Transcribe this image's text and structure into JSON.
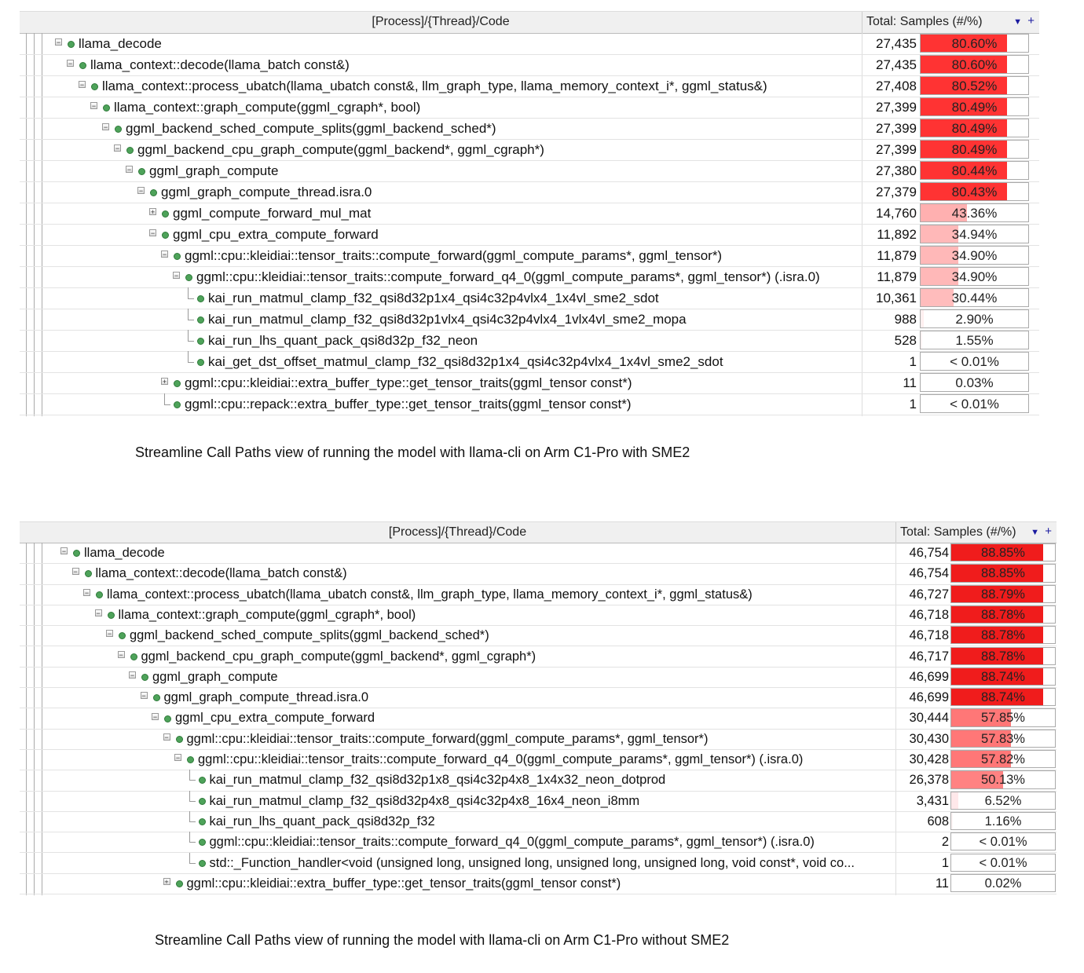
{
  "tables": [
    {
      "header": {
        "code": "[Process]/{Thread}/Code",
        "samples": "Total: Samples (#/%)",
        "sort_icon": "sort-desc-icon",
        "add_icon": "plus-icon"
      },
      "caption": "Streamline Call Paths view of running the model with llama-cli on Arm C1-Pro with SME2",
      "rows": [
        {
          "depth": 0,
          "exp": "minus",
          "name": "llama_decode",
          "count": "27,435",
          "pct": "80.60%",
          "fill": 80.6,
          "color": "#ff3333"
        },
        {
          "depth": 1,
          "exp": "minus",
          "name": "llama_context::decode(llama_batch const&)",
          "count": "27,435",
          "pct": "80.60%",
          "fill": 80.6,
          "color": "#ff3333"
        },
        {
          "depth": 2,
          "exp": "minus",
          "name": "llama_context::process_ubatch(llama_ubatch const&, llm_graph_type, llama_memory_context_i*, ggml_status&)",
          "count": "27,408",
          "pct": "80.52%",
          "fill": 80.52,
          "color": "#ff3333"
        },
        {
          "depth": 3,
          "exp": "minus",
          "name": "llama_context::graph_compute(ggml_cgraph*, bool)",
          "count": "27,399",
          "pct": "80.49%",
          "fill": 80.49,
          "color": "#ff3333"
        },
        {
          "depth": 4,
          "exp": "minus",
          "name": "ggml_backend_sched_compute_splits(ggml_backend_sched*)",
          "count": "27,399",
          "pct": "80.49%",
          "fill": 80.49,
          "color": "#ff3333"
        },
        {
          "depth": 5,
          "exp": "minus",
          "name": "ggml_backend_cpu_graph_compute(ggml_backend*, ggml_cgraph*)",
          "count": "27,399",
          "pct": "80.49%",
          "fill": 80.49,
          "color": "#ff3333"
        },
        {
          "depth": 6,
          "exp": "minus",
          "name": "ggml_graph_compute",
          "count": "27,380",
          "pct": "80.44%",
          "fill": 80.44,
          "color": "#ff3333"
        },
        {
          "depth": 7,
          "exp": "minus",
          "name": "ggml_graph_compute_thread.isra.0",
          "count": "27,379",
          "pct": "80.43%",
          "fill": 80.43,
          "color": "#ff3333"
        },
        {
          "depth": 8,
          "exp": "plus",
          "name": "ggml_compute_forward_mul_mat",
          "count": "14,760",
          "pct": "43.36%",
          "fill": 43.36,
          "color": "#ffb0b0"
        },
        {
          "depth": 8,
          "exp": "minus",
          "name": "ggml_cpu_extra_compute_forward",
          "count": "11,892",
          "pct": "34.94%",
          "fill": 34.94,
          "color": "#ffb8b8"
        },
        {
          "depth": 9,
          "exp": "minus",
          "name": "ggml::cpu::kleidiai::tensor_traits::compute_forward(ggml_compute_params*, ggml_tensor*)",
          "count": "11,879",
          "pct": "34.90%",
          "fill": 34.9,
          "color": "#ffb8b8"
        },
        {
          "depth": 10,
          "exp": "minus",
          "name": "ggml::cpu::kleidiai::tensor_traits::compute_forward_q4_0(ggml_compute_params*, ggml_tensor*) (.isra.0)",
          "count": "11,879",
          "pct": "34.90%",
          "fill": 34.9,
          "color": "#ffb8b8"
        },
        {
          "depth": 11,
          "exp": "leaf",
          "name": "kai_run_matmul_clamp_f32_qsi8d32p1x4_qsi4c32p4vlx4_1x4vl_sme2_sdot",
          "count": "10,361",
          "pct": "30.44%",
          "fill": 30.44,
          "color": "#ffbcbc"
        },
        {
          "depth": 11,
          "exp": "leaf",
          "name": "kai_run_matmul_clamp_f32_qsi8d32p1vlx4_qsi4c32p4vlx4_1vlx4vl_sme2_mopa",
          "count": "988",
          "pct": "2.90%",
          "fill": 2.9,
          "color": "#fff0f0"
        },
        {
          "depth": 11,
          "exp": "leaf",
          "name": "kai_run_lhs_quant_pack_qsi8d32p_f32_neon",
          "count": "528",
          "pct": "1.55%",
          "fill": 1.55,
          "color": "#fff4f4"
        },
        {
          "depth": 11,
          "exp": "leaf",
          "name": "kai_get_dst_offset_matmul_clamp_f32_qsi8d32p1x4_qsi4c32p4vlx4_1x4vl_sme2_sdot",
          "count": "1",
          "pct": "< 0.01%",
          "fill": 0,
          "color": "#ffffff"
        },
        {
          "depth": 9,
          "exp": "plus",
          "name": "ggml::cpu::kleidiai::extra_buffer_type::get_tensor_traits(ggml_tensor const*)",
          "count": "11",
          "pct": "0.03%",
          "fill": 0.03,
          "color": "#ffffff"
        },
        {
          "depth": 9,
          "exp": "leaf",
          "name": "ggml::cpu::repack::extra_buffer_type::get_tensor_traits(ggml_tensor const*)",
          "count": "1",
          "pct": "< 0.01%",
          "fill": 0,
          "color": "#ffffff"
        }
      ]
    },
    {
      "header": {
        "code": "[Process]/{Thread}/Code",
        "samples": "Total: Samples (#/%)",
        "sort_icon": "sort-desc-icon",
        "add_icon": "plus-icon"
      },
      "caption": "Streamline Call Paths view of running the model with llama-cli on Arm C1-Pro without SME2",
      "rows": [
        {
          "depth": 0,
          "exp": "minus",
          "name": "llama_decode",
          "count": "46,754",
          "pct": "88.85%",
          "fill": 88.85,
          "color": "#f01c1c"
        },
        {
          "depth": 1,
          "exp": "minus",
          "name": "llama_context::decode(llama_batch const&)",
          "count": "46,754",
          "pct": "88.85%",
          "fill": 88.85,
          "color": "#f01c1c"
        },
        {
          "depth": 2,
          "exp": "minus",
          "name": "llama_context::process_ubatch(llama_ubatch const&, llm_graph_type, llama_memory_context_i*, ggml_status&)",
          "count": "46,727",
          "pct": "88.79%",
          "fill": 88.79,
          "color": "#f01c1c"
        },
        {
          "depth": 3,
          "exp": "minus",
          "name": "llama_context::graph_compute(ggml_cgraph*, bool)",
          "count": "46,718",
          "pct": "88.78%",
          "fill": 88.78,
          "color": "#f01c1c"
        },
        {
          "depth": 4,
          "exp": "minus",
          "name": "ggml_backend_sched_compute_splits(ggml_backend_sched*)",
          "count": "46,718",
          "pct": "88.78%",
          "fill": 88.78,
          "color": "#f01c1c"
        },
        {
          "depth": 5,
          "exp": "minus",
          "name": "ggml_backend_cpu_graph_compute(ggml_backend*, ggml_cgraph*)",
          "count": "46,717",
          "pct": "88.78%",
          "fill": 88.78,
          "color": "#f01c1c"
        },
        {
          "depth": 6,
          "exp": "minus",
          "name": "ggml_graph_compute",
          "count": "46,699",
          "pct": "88.74%",
          "fill": 88.74,
          "color": "#f01c1c"
        },
        {
          "depth": 7,
          "exp": "minus",
          "name": "ggml_graph_compute_thread.isra.0",
          "count": "46,699",
          "pct": "88.74%",
          "fill": 88.74,
          "color": "#f01c1c"
        },
        {
          "depth": 8,
          "exp": "minus",
          "name": "ggml_cpu_extra_compute_forward",
          "count": "30,444",
          "pct": "57.85%",
          "fill": 57.85,
          "color": "#ff7777"
        },
        {
          "depth": 9,
          "exp": "minus",
          "name": "ggml::cpu::kleidiai::tensor_traits::compute_forward(ggml_compute_params*, ggml_tensor*)",
          "count": "30,430",
          "pct": "57.83%",
          "fill": 57.83,
          "color": "#ff7777"
        },
        {
          "depth": 10,
          "exp": "minus",
          "name": "ggml::cpu::kleidiai::tensor_traits::compute_forward_q4_0(ggml_compute_params*, ggml_tensor*) (.isra.0)",
          "count": "30,428",
          "pct": "57.82%",
          "fill": 57.82,
          "color": "#ff7777"
        },
        {
          "depth": 11,
          "exp": "leaf",
          "name": "kai_run_matmul_clamp_f32_qsi8d32p1x8_qsi4c32p4x8_1x4x32_neon_dotprod",
          "count": "26,378",
          "pct": "50.13%",
          "fill": 50.13,
          "color": "#ff8282"
        },
        {
          "depth": 11,
          "exp": "leaf",
          "name": "kai_run_matmul_clamp_f32_qsi8d32p4x8_qsi4c32p4x8_16x4_neon_i8mm",
          "count": "3,431",
          "pct": "6.52%",
          "fill": 6.52,
          "color": "#ffe8ea"
        },
        {
          "depth": 11,
          "exp": "leaf",
          "name": "kai_run_lhs_quant_pack_qsi8d32p_f32",
          "count": "608",
          "pct": "1.16%",
          "fill": 1.16,
          "color": "#fff6f6"
        },
        {
          "depth": 11,
          "exp": "leaf",
          "name": "ggml::cpu::kleidiai::tensor_traits::compute_forward_q4_0(ggml_compute_params*, ggml_tensor*) (.isra.0)",
          "count": "2",
          "pct": "< 0.01%",
          "fill": 0,
          "color": "#ffffff"
        },
        {
          "depth": 11,
          "exp": "leaf",
          "name": "std::_Function_handler<void (unsigned long, unsigned long, unsigned long, unsigned long, void const*, void co...",
          "count": "1",
          "pct": "< 0.01%",
          "fill": 0,
          "color": "#ffffff"
        },
        {
          "depth": 9,
          "exp": "plus",
          "name": "ggml::cpu::kleidiai::extra_buffer_type::get_tensor_traits(ggml_tensor const*)",
          "count": "11",
          "pct": "0.02%",
          "fill": 0.02,
          "color": "#ffffff"
        }
      ]
    }
  ]
}
